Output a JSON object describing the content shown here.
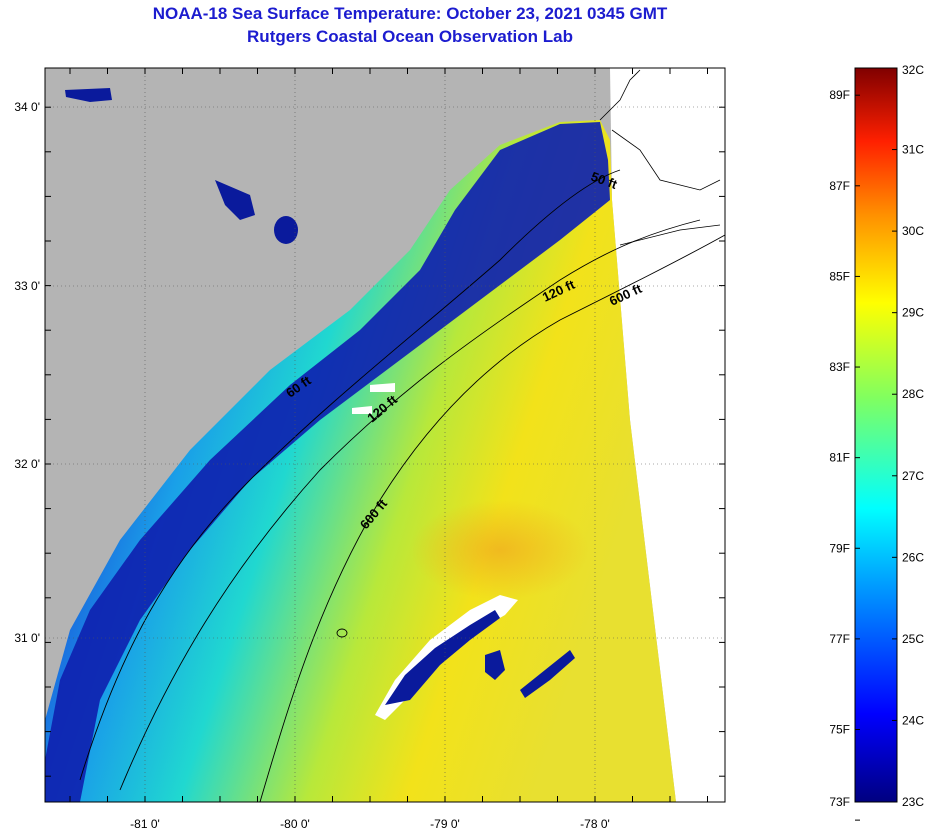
{
  "header": {
    "title": "NOAA-18 Sea Surface Temperature:  October 23, 2021 0345 GMT",
    "subtitle": "Rutgers Coastal Ocean Observation Lab"
  },
  "map": {
    "lon_labels": [
      "-81 0'",
      "-80 0'",
      "-79 0'",
      "-78 0'"
    ],
    "lat_labels": [
      "34 0'",
      "33 0'",
      "32 0'",
      "31 0'"
    ],
    "contours": [
      "50 ft",
      "60 ft",
      "120 ft",
      "120 ft",
      "600 ft",
      "600 ft"
    ],
    "colors": {
      "land": "#b4b4b4",
      "cold": "#0a1a9c",
      "warm": "#f2e21a"
    }
  },
  "colorbar": {
    "fahrenheit": [
      "89F",
      "87F",
      "85F",
      "83F",
      "81F",
      "79F",
      "77F",
      "75F",
      "73F"
    ],
    "celsius": [
      "32C",
      "31C",
      "30C",
      "29C",
      "28C",
      "27C",
      "26C",
      "25C",
      "24C",
      "23C"
    ]
  }
}
